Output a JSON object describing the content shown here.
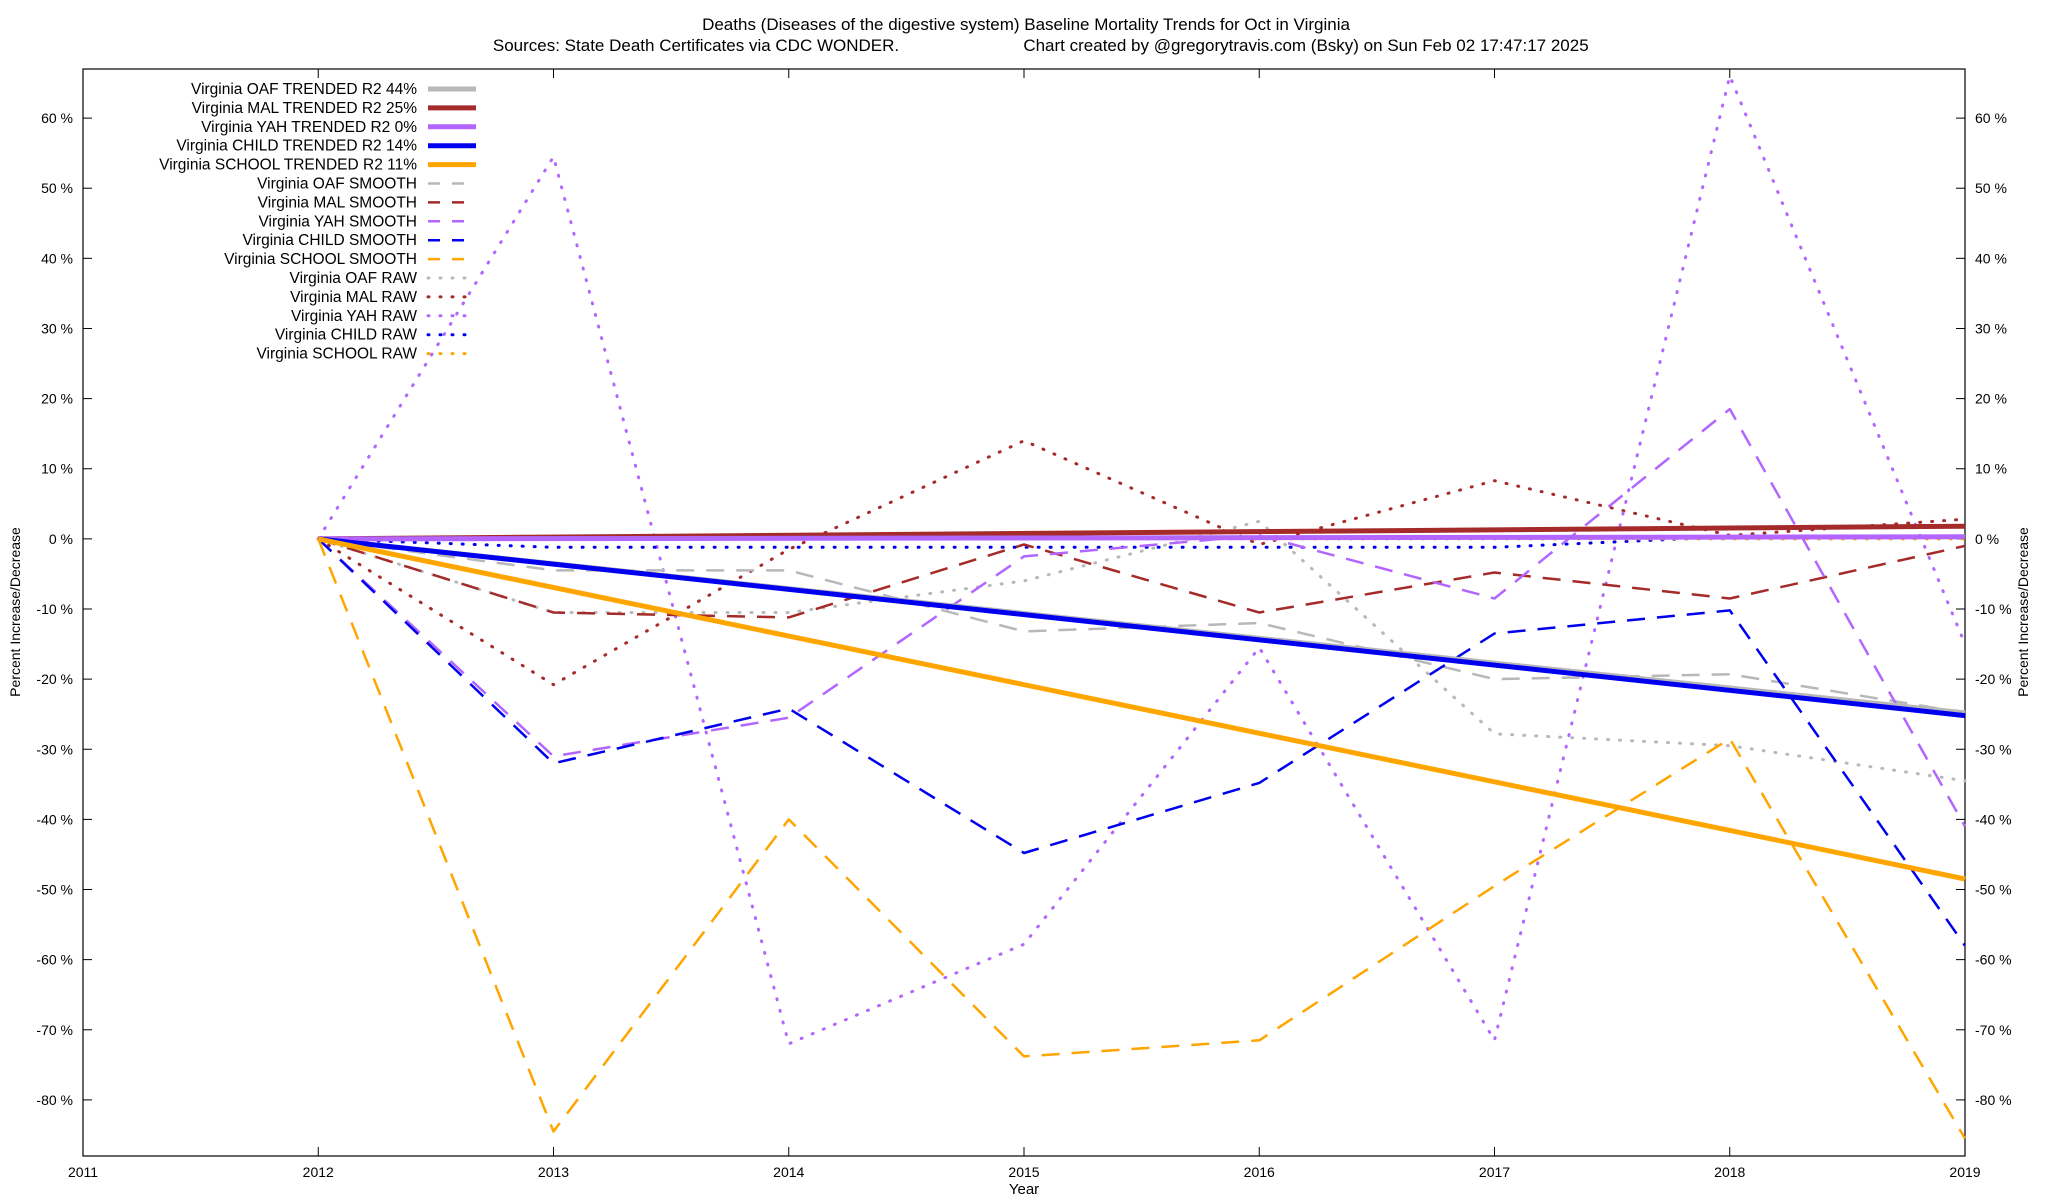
{
  "chart_data": {
    "type": "line",
    "title_line1": "Deaths (Diseases of the digestive system)  Baseline Mortality Trends for Oct in Virginia",
    "title_line2_left": "Sources: State Death Certificates via CDC WONDER.",
    "title_line2_right": "Chart created by @gregorytravis.com (Bsky) on Sun Feb 02 17:47:17 2025",
    "xlabel": "Year",
    "ylabel_left": "Percent Increase/Decrease",
    "ylabel_right": "Percent Increase/Decrease",
    "xlim": [
      2011,
      2019
    ],
    "ylim": [
      -88,
      67
    ],
    "x_ticks": [
      2011,
      2012,
      2013,
      2014,
      2015,
      2016,
      2017,
      2018,
      2019
    ],
    "y_ticks": [
      60,
      50,
      40,
      30,
      20,
      10,
      0,
      -10,
      -20,
      -30,
      -40,
      -50,
      -60,
      -70,
      -80
    ],
    "y_tick_suffix": " %",
    "grid": false,
    "legend_position": "top-left",
    "colors": {
      "OAF": "#b8b8b8",
      "MAL": "#a52a2a",
      "YAH": "#b266ff",
      "CHILD": "#0000ee",
      "SCHOOL": "#ffa500"
    },
    "series": [
      {
        "name": "Virginia OAF TRENDED R2  44%",
        "group": "OAF",
        "style": "trend",
        "x": [
          2012,
          2019
        ],
        "y": [
          0,
          -24.8
        ]
      },
      {
        "name": "Virginia MAL TRENDED R2  25%",
        "group": "MAL",
        "style": "trend",
        "x": [
          2012,
          2019
        ],
        "y": [
          0,
          1.8
        ]
      },
      {
        "name": "Virginia YAH TRENDED R2   0%",
        "group": "YAH",
        "style": "trend",
        "x": [
          2012,
          2019
        ],
        "y": [
          0,
          0.3
        ]
      },
      {
        "name": "Virginia CHILD TRENDED R2  14%",
        "group": "CHILD",
        "style": "trend",
        "x": [
          2012,
          2019
        ],
        "y": [
          0,
          -25.2
        ]
      },
      {
        "name": "Virginia SCHOOL TRENDED R2  11%",
        "group": "SCHOOL",
        "style": "trend",
        "x": [
          2012,
          2019
        ],
        "y": [
          0,
          -48.5
        ]
      },
      {
        "name": "Virginia OAF SMOOTH",
        "group": "OAF",
        "style": "smooth",
        "x": [
          2012,
          2013,
          2014,
          2015,
          2016,
          2017,
          2018,
          2019
        ],
        "y": [
          0,
          -4.5,
          -4.5,
          -13.2,
          -12.0,
          -20.0,
          -19.3,
          -24.8
        ]
      },
      {
        "name": "Virginia MAL SMOOTH",
        "group": "MAL",
        "style": "smooth",
        "x": [
          2012,
          2013,
          2014,
          2015,
          2016,
          2017,
          2018,
          2019
        ],
        "y": [
          0,
          -10.5,
          -11.2,
          -0.8,
          -10.5,
          -4.8,
          -8.5,
          -1.0
        ]
      },
      {
        "name": "Virginia YAH SMOOTH",
        "group": "YAH",
        "style": "smooth",
        "x": [
          2012,
          2013,
          2014,
          2015,
          2016,
          2017,
          2018,
          2019
        ],
        "y": [
          0,
          -31.0,
          -25.5,
          -2.5,
          0.5,
          -8.5,
          18.5,
          -41.0
        ]
      },
      {
        "name": "Virginia CHILD SMOOTH",
        "group": "CHILD",
        "style": "smooth",
        "x": [
          2012,
          2013,
          2014,
          2015,
          2016,
          2017,
          2018,
          2019
        ],
        "y": [
          0,
          -32.0,
          -24.2,
          -44.8,
          -34.8,
          -13.5,
          -10.2,
          -58.0
        ]
      },
      {
        "name": "Virginia SCHOOL SMOOTH",
        "group": "SCHOOL",
        "style": "smooth",
        "x": [
          2012,
          2013,
          2014,
          2015,
          2016,
          2017,
          2018,
          2019
        ],
        "y": [
          0,
          -84.5,
          -40.0,
          -73.8,
          -71.5,
          -49.5,
          -28.5,
          -85.5
        ]
      },
      {
        "name": "Virginia OAF RAW",
        "group": "OAF",
        "style": "raw",
        "x": [
          2012,
          2013,
          2014,
          2015,
          2016,
          2017,
          2018,
          2019
        ],
        "y": [
          0,
          -10.5,
          -10.5,
          -6.0,
          2.5,
          -27.8,
          -29.5,
          -34.5
        ]
      },
      {
        "name": "Virginia MAL RAW",
        "group": "MAL",
        "style": "raw",
        "x": [
          2012,
          2013,
          2014,
          2015,
          2016,
          2017,
          2018,
          2019
        ],
        "y": [
          0,
          -20.8,
          -1.5,
          14.0,
          -0.8,
          8.3,
          0.5,
          2.8
        ]
      },
      {
        "name": "Virginia YAH RAW",
        "group": "YAH",
        "style": "raw",
        "x": [
          2012,
          2013,
          2014,
          2015,
          2016,
          2017,
          2018,
          2019
        ],
        "y": [
          0,
          54.5,
          -72.0,
          -57.8,
          -15.5,
          -71.5,
          66.0,
          -15.0
        ]
      },
      {
        "name": "Virginia CHILD RAW",
        "group": "CHILD",
        "style": "raw",
        "x": [
          2012,
          2013,
          2014,
          2015,
          2016,
          2017,
          2018,
          2019
        ],
        "y": [
          0,
          -1.2,
          -1.2,
          -1.2,
          -1.2,
          -1.2,
          0.3,
          0.3
        ]
      },
      {
        "name": "Virginia SCHOOL RAW",
        "group": "SCHOOL",
        "style": "raw",
        "x": [
          2012,
          2013,
          2014,
          2015,
          2016,
          2017,
          2018,
          2019
        ],
        "y": [
          0,
          0,
          0,
          0,
          0,
          0,
          0,
          0
        ]
      }
    ]
  }
}
